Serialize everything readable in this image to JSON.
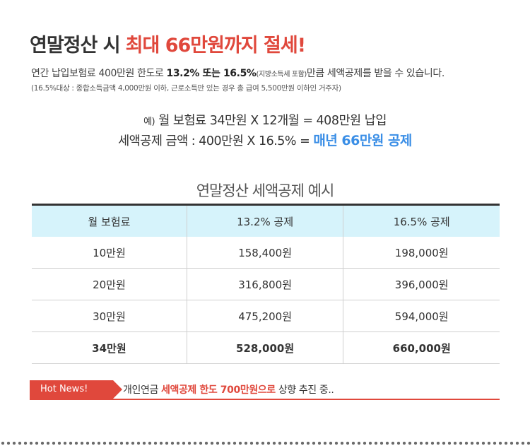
{
  "title": {
    "part1": "연말정산 시",
    "part2": "최대 66만원까지 절세!"
  },
  "desc": {
    "a": "연간 납입보험료 400만원 한도로 ",
    "b": "13.2% 또는 16.5%",
    "c": "(지방소득세 포함)",
    "d": "만큼 세액공제를 받을 수 있습니다."
  },
  "sub": "(16.5%대상 : 종합소득금액 4,000만원 이하, 근로소득만 있는 경우 총 급여 5,500만원 이하인 거주자)",
  "example": {
    "prefix": "예)",
    "line1": " 월 보험료 34만원 X 12개월 = 408만원 납입",
    "line2a": "세액공제 금액 : 400만원 X 16.5% = ",
    "line2b": "매년 66만원 공제"
  },
  "table": {
    "title": "연말정산 세액공제 예시",
    "headers": [
      "월 보험료",
      "13.2% 공제",
      "16.5% 공제"
    ],
    "rows": [
      [
        "10만원",
        "158,400원",
        "198,000원"
      ],
      [
        "20만원",
        "316,800원",
        "396,000원"
      ],
      [
        "30만원",
        "475,200원",
        "594,000원"
      ],
      [
        "34만원",
        "528,000원",
        "660,000원"
      ]
    ]
  },
  "news": {
    "badge": "Hot News!",
    "a": "개인연금 ",
    "b": "세액공제 한도 700만원으로",
    "c": " 상향 추진 중.."
  }
}
